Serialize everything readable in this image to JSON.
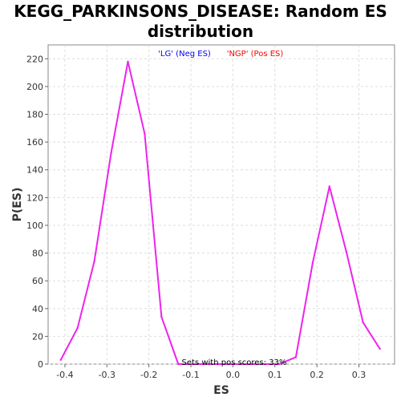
{
  "chart_data": {
    "type": "line",
    "title_line1": "KEGG_PARKINSONS_DISEASE: Random ES",
    "title_line2": "distribution",
    "xlabel": "ES",
    "ylabel": "P(ES)",
    "xlim": [
      -0.44,
      0.385
    ],
    "ylim": [
      0,
      230
    ],
    "x_ticks": [
      -0.4,
      -0.3,
      -0.2,
      -0.1,
      0.0,
      0.1,
      0.2,
      0.3
    ],
    "x_tick_labels": [
      "-0.4",
      "-0.3",
      "-0.2",
      "-0.1",
      "0.0",
      "0.1",
      "0.2",
      "0.3"
    ],
    "y_ticks": [
      0,
      20,
      40,
      60,
      80,
      100,
      120,
      140,
      160,
      180,
      200,
      220
    ],
    "y_tick_labels": [
      "0",
      "20",
      "40",
      "60",
      "80",
      "100",
      "120",
      "140",
      "160",
      "180",
      "200",
      "220"
    ],
    "grid": true,
    "legend": [
      {
        "label": "'LG' (Neg ES)",
        "color": "#0000ff"
      },
      {
        "label": "'NGP' (Pos ES)",
        "color": "#ff0000"
      }
    ],
    "annotation": "Sets with pos scores: 33%",
    "series": [
      {
        "color": "#ee22ee",
        "x": [
          -0.41,
          -0.37,
          -0.33,
          -0.29,
          -0.25,
          -0.21,
          -0.17,
          -0.13,
          -0.09,
          -0.05,
          -0.01,
          0.03,
          0.07,
          0.11,
          0.15,
          0.19,
          0.23,
          0.27,
          0.31,
          0.35
        ],
        "y": [
          3,
          26,
          74,
          152,
          218,
          166,
          34,
          0,
          0,
          0,
          0,
          0,
          0,
          0,
          5,
          73,
          128,
          81,
          30,
          11
        ]
      }
    ]
  }
}
